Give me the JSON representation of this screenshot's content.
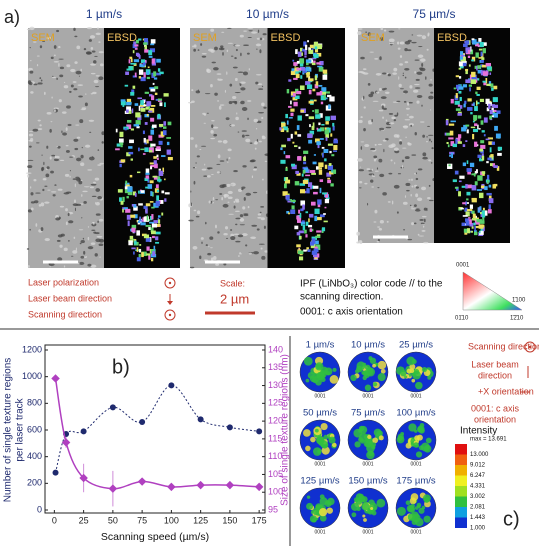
{
  "panel_a": {
    "label": "a)",
    "images": [
      {
        "speed": "1 µm/s",
        "sem": "SEM",
        "ebsd": "EBSD"
      },
      {
        "speed": "10 µm/s",
        "sem": "SEM",
        "ebsd": "EBSD"
      },
      {
        "speed": "75 µm/s",
        "sem": "SEM",
        "ebsd": "EBSD"
      }
    ],
    "legend": [
      "Laser polarization",
      "Laser beam direction",
      "Scanning direction"
    ],
    "scale_label": "Scale:",
    "scale_value": "2 µm",
    "ipf_text": [
      "IPF (LiNbO₃) color code // to the",
      "scanning direction.",
      "0001: c axis orientation"
    ],
    "ipf_corners": [
      "0001",
      "1̄100",
      "01̄10",
      "1̄2̄10"
    ]
  },
  "chart_data": {
    "type": "scatter",
    "label": "b)",
    "xlabel": "Scanning speed (µm/s)",
    "ylabel": [
      "Number of single texture regions",
      "per laser track"
    ],
    "y2label": "Size of single texture regions (nm)",
    "x": [
      1,
      10,
      25,
      50,
      75,
      100,
      125,
      150,
      175
    ],
    "series": [
      {
        "color": "#1f2a6e",
        "values": [
          280,
          570,
          590,
          770,
          660,
          935,
          680,
          620,
          590
        ]
      },
      {
        "color": "#b040c0",
        "axis": "y2",
        "values": [
          132,
          114,
          104,
          101,
          103,
          101.5,
          102,
          102,
          101.5
        ],
        "errors": [
          1,
          1.5,
          4,
          5,
          1,
          1,
          0.5,
          0.5,
          0.5
        ]
      }
    ],
    "xlim": [
      -8,
      180
    ],
    "xticks": [
      0,
      25,
      50,
      75,
      100,
      125,
      150,
      175
    ],
    "ylim": [
      0,
      1200
    ],
    "yticks": [
      0,
      200,
      400,
      600,
      800,
      1000,
      1200
    ],
    "y2lim": [
      95,
      140
    ],
    "y2ticks": [
      95,
      100,
      105,
      110,
      115,
      120,
      125,
      130,
      135,
      140
    ]
  },
  "panel_c": {
    "label": "c)",
    "speeds": [
      "1 µm/s",
      "10 µm/s",
      "25 µm/s",
      "50 µm/s",
      "75 µm/s",
      "100 µm/s",
      "125 µm/s",
      "150 µm/s",
      "175 µm/s"
    ],
    "pole_label": "0001",
    "legend": [
      "Scanning direction",
      "Laser beam",
      "direction",
      "+X orientation",
      "0001: c axis",
      "orientation"
    ],
    "intensity_title": "Intensity",
    "intensity_labels": [
      "max = 13.691",
      "13.000",
      "9.012",
      "6.247",
      "4.331",
      "3.002",
      "2.081",
      "1.443",
      "1.000"
    ]
  }
}
